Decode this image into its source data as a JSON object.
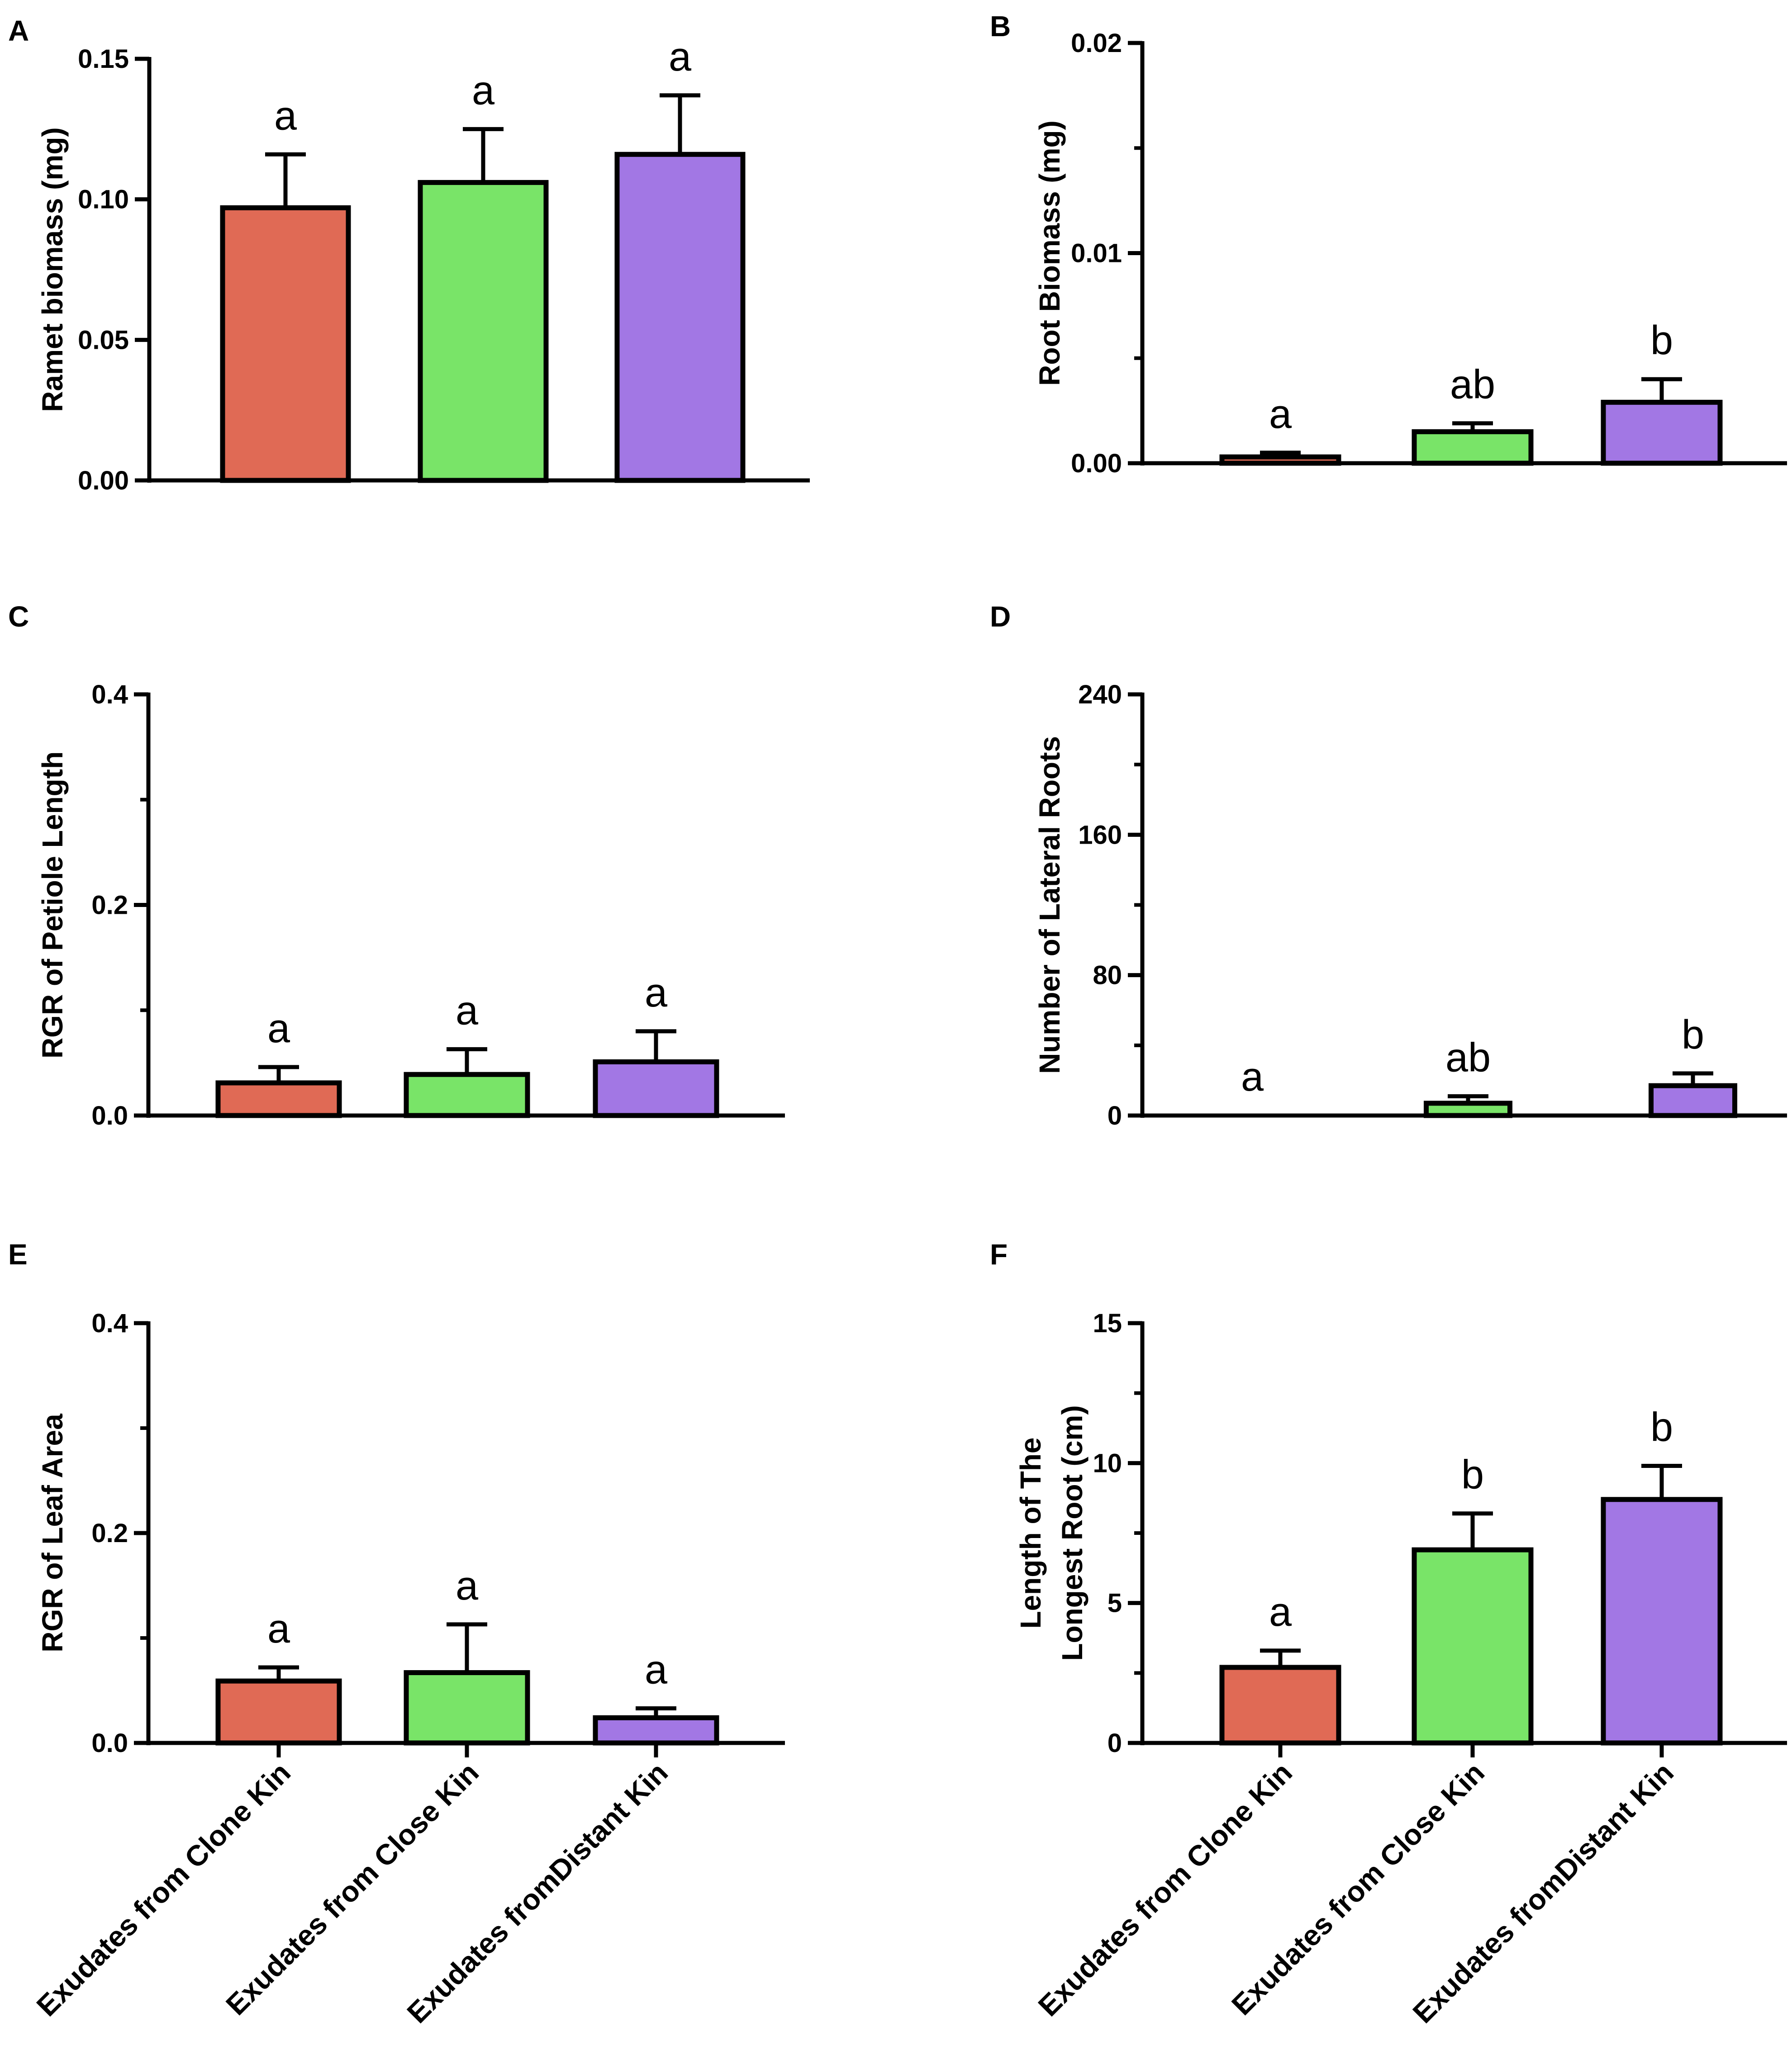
{
  "figure": {
    "categories": [
      "Exudates from Clone Kin",
      "Exudates from Close Kin",
      "Exudates fromDistant Kin"
    ],
    "colors": [
      "#E06A55",
      "#79E468",
      "#A277E4"
    ],
    "panels": [
      "A",
      "B",
      "C",
      "D",
      "E",
      "F"
    ]
  },
  "chart_data": [
    {
      "panel": "A",
      "type": "bar",
      "ylabel": "Ramet biomass (mg)",
      "categories": [
        "Exudates from Clone Kin",
        "Exudates from Close Kin",
        "Exudates fromDistant Kin"
      ],
      "values": [
        0.097,
        0.106,
        0.116
      ],
      "errors": [
        0.019,
        0.019,
        0.021
      ],
      "letters": [
        "a",
        "a",
        "a"
      ],
      "ylim": [
        0,
        0.15
      ],
      "yticks": [
        0,
        0.05,
        0.1,
        0.15
      ],
      "yticklabels": [
        "0.00",
        "0.05",
        "0.10",
        "0.15"
      ]
    },
    {
      "panel": "B",
      "type": "bar",
      "ylabel": "Root Biomass (mg)",
      "categories": [
        "Exudates from Clone Kin",
        "Exudates from Close Kin",
        "Exudates fromDistant Kin"
      ],
      "values": [
        0.0003,
        0.0015,
        0.0029
      ],
      "errors": [
        0.0002,
        0.0004,
        0.0011
      ],
      "letters": [
        "a",
        "ab",
        "b"
      ],
      "ylim": [
        0,
        0.02
      ],
      "yticks": [
        0,
        0.01,
        0.02
      ],
      "yticklabels": [
        "0.00",
        "0.01",
        "0.02"
      ]
    },
    {
      "panel": "C",
      "type": "bar",
      "ylabel": "RGR of Petiole Length",
      "categories": [
        "Exudates from Clone Kin",
        "Exudates from Close Kin",
        "Exudates fromDistant Kin"
      ],
      "values": [
        0.031,
        0.039,
        0.051
      ],
      "errors": [
        0.015,
        0.024,
        0.029
      ],
      "letters": [
        "a",
        "a",
        "a"
      ],
      "ylim": [
        0,
        0.4
      ],
      "yticks": [
        0,
        0.2,
        0.4
      ],
      "yticklabels": [
        "0.0",
        "0.2",
        "0.4"
      ]
    },
    {
      "panel": "D",
      "type": "bar",
      "ylabel": "Number of Lateral Roots",
      "categories": [
        "Exudates from Clone Kin",
        "Exudates from Close Kin",
        "Exudates fromDistant Kin"
      ],
      "values": [
        0,
        7,
        17
      ],
      "errors": [
        0,
        4,
        7
      ],
      "letters": [
        "a",
        "ab",
        "b"
      ],
      "ylim": [
        0,
        240
      ],
      "yticks": [
        0,
        80,
        160,
        240
      ],
      "yticklabels": [
        "0",
        "80",
        "160",
        "240"
      ]
    },
    {
      "panel": "E",
      "type": "bar",
      "ylabel": "RGR of Leaf Area",
      "categories": [
        "Exudates from Clone Kin",
        "Exudates from Close Kin",
        "Exudates fromDistant Kin"
      ],
      "values": [
        0.059,
        0.067,
        0.024
      ],
      "errors": [
        0.013,
        0.046,
        0.009
      ],
      "letters": [
        "a",
        "a",
        "a"
      ],
      "ylim": [
        0,
        0.4
      ],
      "yticks": [
        0,
        0.2,
        0.4
      ],
      "yticklabels": [
        "0.0",
        "0.2",
        "0.4"
      ]
    },
    {
      "panel": "F",
      "type": "bar",
      "ylabel": "Length of The Longest Root (cm)",
      "ylabel_lines": [
        "Length of The",
        "Longest Root (cm)"
      ],
      "categories": [
        "Exudates from Clone Kin",
        "Exudates from Close Kin",
        "Exudates fromDistant Kin"
      ],
      "values": [
        2.7,
        6.9,
        8.7
      ],
      "errors": [
        0.6,
        1.3,
        1.2
      ],
      "letters": [
        "a",
        "b",
        "b"
      ],
      "ylim": [
        0,
        15
      ],
      "yticks": [
        0,
        5,
        10,
        15
      ],
      "yticklabels": [
        "0",
        "5",
        "10",
        "15"
      ]
    }
  ]
}
